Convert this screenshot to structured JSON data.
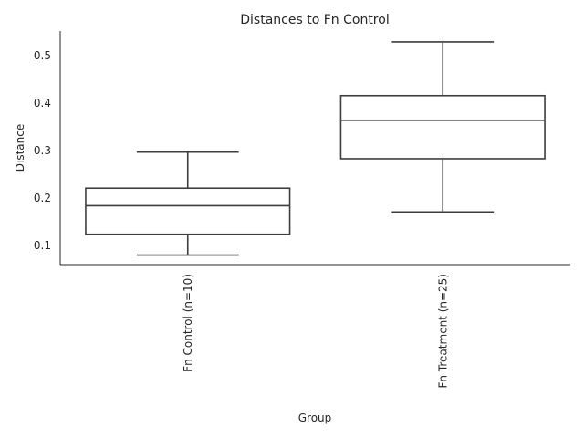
{
  "chart_data": {
    "type": "box",
    "title": "Distances to Fn Control",
    "xlabel": "Group",
    "ylabel": "Distance",
    "categories": [
      "Fn Control (n=10)",
      "Fn Treatment (n=25)"
    ],
    "boxes": [
      {
        "category": "Fn Control (n=10)",
        "whislo": 0.08,
        "q1": 0.124,
        "median": 0.184,
        "q3": 0.221,
        "whishi": 0.297
      },
      {
        "category": "Fn Treatment (n=25)",
        "whislo": 0.171,
        "q1": 0.283,
        "median": 0.364,
        "q3": 0.416,
        "whishi": 0.529
      }
    ],
    "yticks": [
      0.1,
      0.2,
      0.3,
      0.4,
      0.5
    ],
    "ytick_labels": [
      "0.1",
      "0.2",
      "0.3",
      "0.4",
      "0.5"
    ],
    "ylim": [
      0.06,
      0.552
    ],
    "grid": false,
    "colors": {
      "line": "#3d3d3d",
      "text": "#262626",
      "background": "#ffffff"
    }
  }
}
